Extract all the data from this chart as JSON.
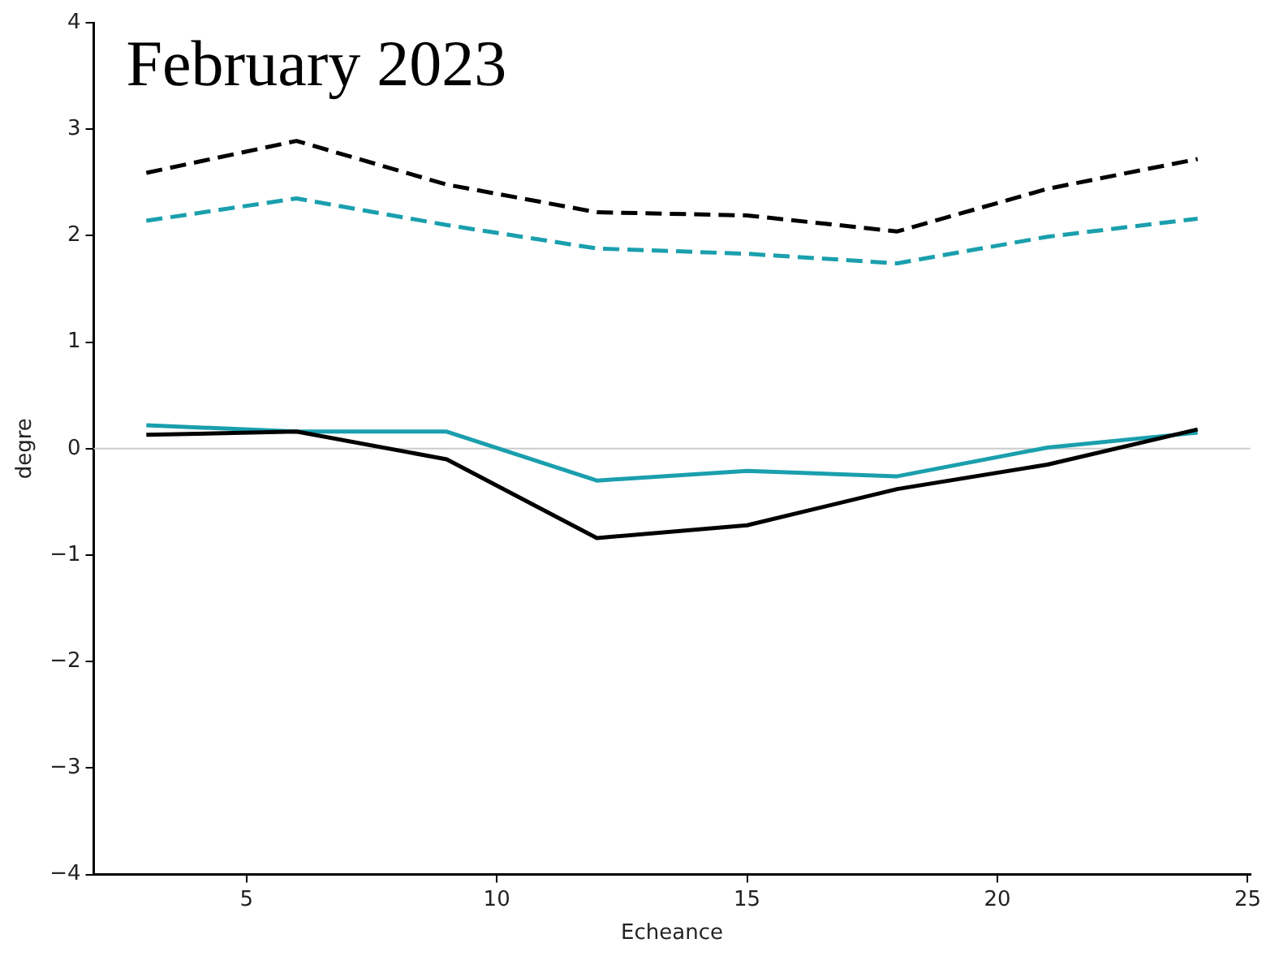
{
  "chart_data": {
    "type": "line",
    "xlabel": "Echeance",
    "ylabel": "degre",
    "annotations": [
      "February 2023"
    ],
    "x": [
      3,
      6,
      9,
      12,
      15,
      18,
      21,
      24
    ],
    "xlim": [
      1.95,
      25.05
    ],
    "xticks": [
      5,
      10,
      15,
      20,
      25
    ],
    "ylim": [
      -4,
      4
    ],
    "yticks": [
      {
        "value": -4,
        "label": "−4"
      },
      {
        "value": -3,
        "label": "−3"
      },
      {
        "value": -2,
        "label": "−2"
      },
      {
        "value": -1,
        "label": "−1"
      },
      0,
      1,
      2,
      3,
      4
    ],
    "ref_lines": [
      {
        "axis": "y",
        "value": 0,
        "color": "#cccccc"
      }
    ],
    "series": [
      {
        "color": "#000000",
        "line_style": "dashed",
        "values": [
          2.59,
          2.89,
          2.48,
          2.22,
          2.19,
          2.04,
          2.44,
          2.72
        ]
      },
      {
        "color": "#1a9fad",
        "line_style": "dashed",
        "values": [
          2.14,
          2.35,
          2.1,
          1.88,
          1.83,
          1.74,
          1.99,
          2.16
        ]
      },
      {
        "color": "#000000",
        "line_style": "solid",
        "values": [
          0.13,
          0.16,
          -0.1,
          -0.84,
          -0.72,
          -0.38,
          -0.15,
          0.18
        ]
      },
      {
        "color": "#1a9fad",
        "line_style": "solid",
        "values": [
          0.22,
          0.16,
          0.16,
          -0.3,
          -0.21,
          -0.26,
          0.01,
          0.15
        ]
      }
    ]
  }
}
